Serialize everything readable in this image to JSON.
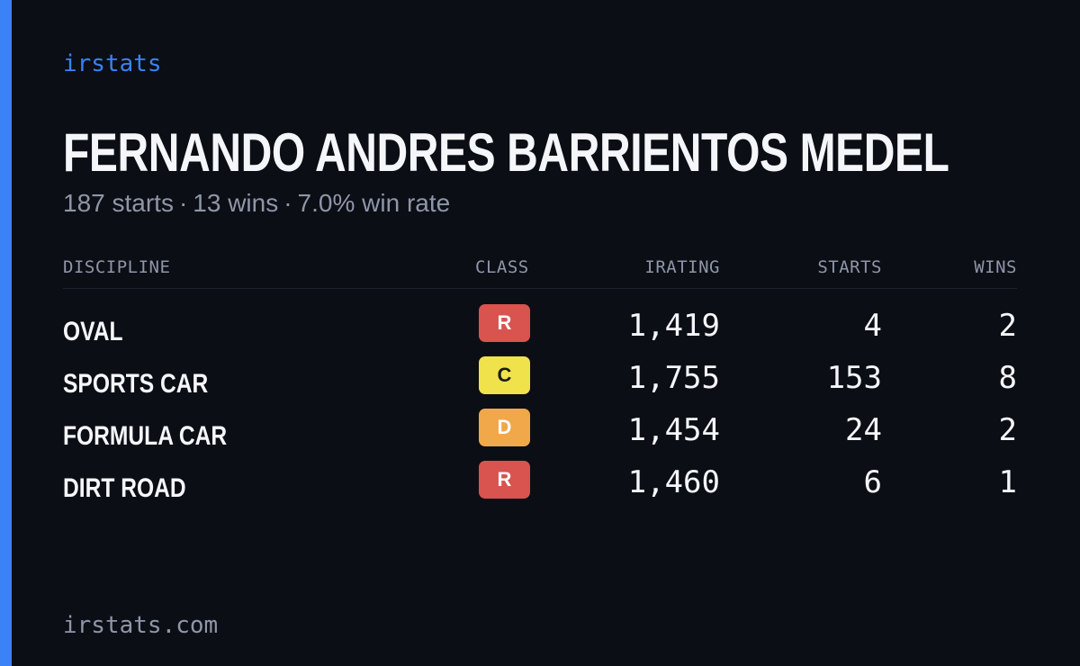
{
  "brand": "irstats",
  "driver": {
    "name": "FERNANDO ANDRES BARRIENTOS MEDEL",
    "starts_text": "187 starts",
    "wins_text": "13 wins",
    "win_rate_text": "7.0% win rate",
    "separator": "·"
  },
  "table": {
    "headers": {
      "discipline": "DISCIPLINE",
      "class": "CLASS",
      "irating": "IRATING",
      "starts": "STARTS",
      "wins": "WINS"
    },
    "rows": [
      {
        "discipline": "OVAL",
        "class": "R",
        "class_bg": "#d9534f",
        "class_fg": "#ffffff",
        "irating": "1,419",
        "starts": "4",
        "wins": "2"
      },
      {
        "discipline": "SPORTS CAR",
        "class": "C",
        "class_bg": "#f0e24a",
        "class_fg": "#1a1a1a",
        "irating": "1,755",
        "starts": "153",
        "wins": "8"
      },
      {
        "discipline": "FORMULA CAR",
        "class": "D",
        "class_bg": "#f0a84a",
        "class_fg": "#ffffff",
        "irating": "1,454",
        "starts": "24",
        "wins": "2"
      },
      {
        "discipline": "DIRT ROAD",
        "class": "R",
        "class_bg": "#d9534f",
        "class_fg": "#ffffff",
        "irating": "1,460",
        "starts": "6",
        "wins": "1"
      }
    ]
  },
  "footer": "irstats.com",
  "colors": {
    "background": "#0b0e15",
    "accent": "#3b82f6",
    "text": "#f5f6fa",
    "muted": "#8f96a8"
  }
}
